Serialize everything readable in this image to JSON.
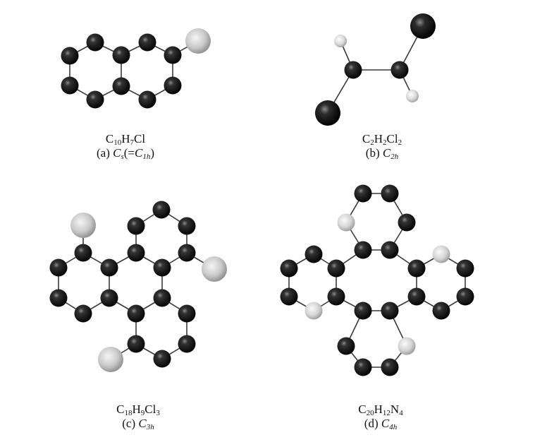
{
  "colors": {
    "carbon": "#2a2a2a",
    "chlorine": "#cfcfcf",
    "nitrogen": "#e0e0e0",
    "hydrogen": "#d8d8d8",
    "bond": "#3a3a3a"
  },
  "panels": [
    {
      "id": "a",
      "formula": [
        [
          "C",
          ""
        ],
        [
          "10",
          "sub"
        ],
        [
          "H",
          ""
        ],
        [
          "7",
          "sub"
        ],
        [
          "Cl",
          ""
        ]
      ],
      "label": [
        [
          "(a) ",
          ""
        ],
        [
          "C",
          "i"
        ],
        [
          "s",
          "sub-i"
        ],
        [
          "(=",
          ""
        ],
        [
          "C",
          "i"
        ],
        [
          "1h",
          "sub-i"
        ],
        [
          ")",
          ""
        ]
      ]
    },
    {
      "id": "b",
      "formula": [
        [
          "C",
          ""
        ],
        [
          "2",
          "sub"
        ],
        [
          "H",
          ""
        ],
        [
          "2",
          "sub"
        ],
        [
          "Cl",
          ""
        ],
        [
          "2",
          "sub"
        ]
      ],
      "label": [
        [
          "(b) ",
          ""
        ],
        [
          "C",
          "i"
        ],
        [
          "2h",
          "sub-i"
        ]
      ]
    },
    {
      "id": "c",
      "formula": [
        [
          "C",
          ""
        ],
        [
          "18",
          "sub"
        ],
        [
          "H",
          ""
        ],
        [
          "9",
          "sub"
        ],
        [
          "Cl",
          ""
        ],
        [
          "3",
          "sub"
        ]
      ],
      "label": [
        [
          "(c) ",
          ""
        ],
        [
          "C",
          "i"
        ],
        [
          "3h",
          "sub-i"
        ]
      ]
    },
    {
      "id": "d",
      "formula": [
        [
          "C",
          ""
        ],
        [
          "20",
          "sub"
        ],
        [
          "H",
          ""
        ],
        [
          "12",
          "sub"
        ],
        [
          "N",
          ""
        ],
        [
          "4",
          "sub"
        ]
      ],
      "label": [
        [
          "(d) ",
          ""
        ],
        [
          "C",
          "i"
        ],
        [
          "4h",
          "sub-i"
        ]
      ]
    }
  ]
}
